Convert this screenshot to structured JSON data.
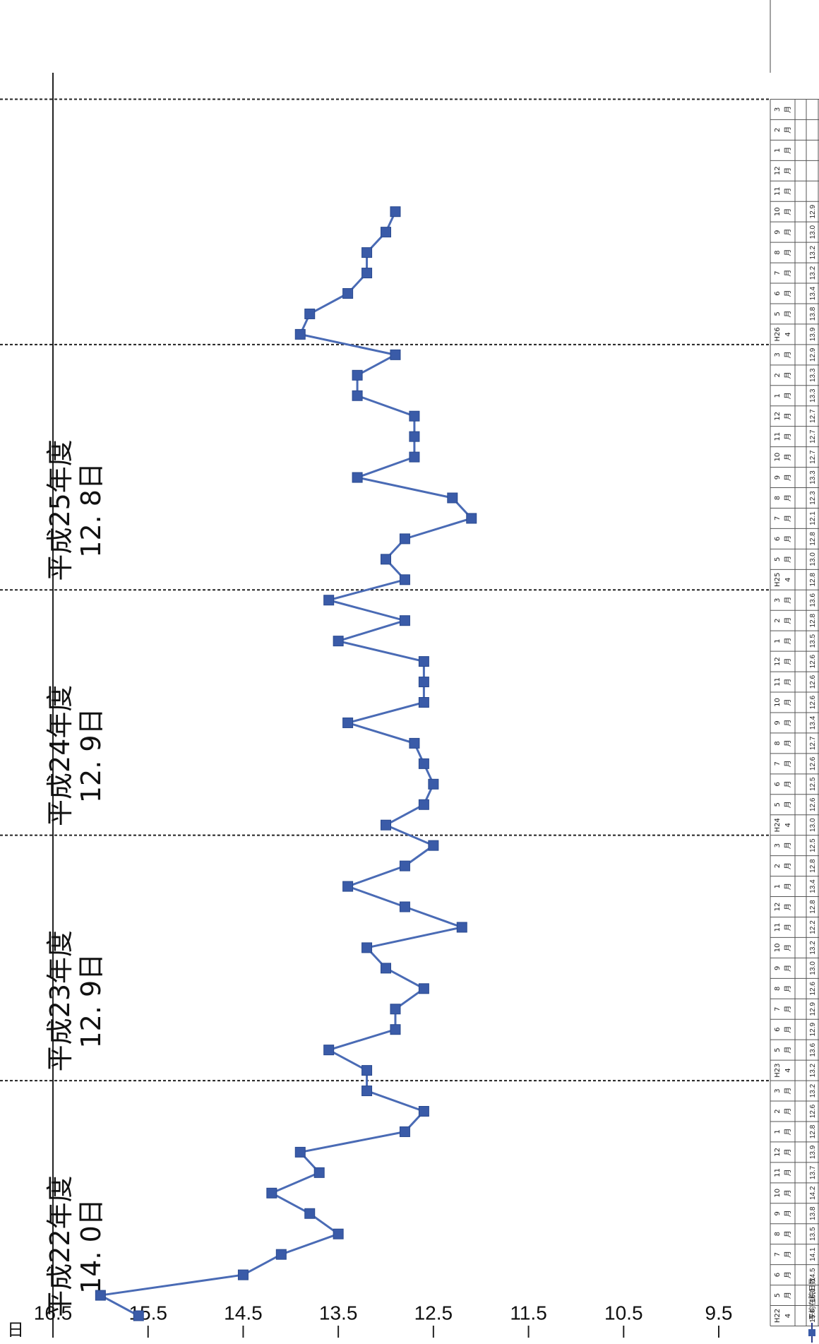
{
  "chart_data": {
    "type": "line",
    "unit_label": "日",
    "ylim": [
      9.5,
      16.5
    ],
    "yticks": [
      "16.5",
      "15.5",
      "14.5",
      "13.5",
      "12.5",
      "11.5",
      "10.5",
      "9.5"
    ],
    "series_name": "平均在院日数",
    "series_color": "#4a6bb5",
    "marker_color": "#3a5ba8",
    "categories": [
      {
        "top": "H22",
        "bottom": "4"
      },
      {
        "top": "5",
        "bottom": "月"
      },
      {
        "top": "6",
        "bottom": "月"
      },
      {
        "top": "7",
        "bottom": "月"
      },
      {
        "top": "8",
        "bottom": "月"
      },
      {
        "top": "9",
        "bottom": "月"
      },
      {
        "top": "10",
        "bottom": "月"
      },
      {
        "top": "11",
        "bottom": "月"
      },
      {
        "top": "12",
        "bottom": "月"
      },
      {
        "top": "1",
        "bottom": "月"
      },
      {
        "top": "2",
        "bottom": "月"
      },
      {
        "top": "3",
        "bottom": "月"
      },
      {
        "top": "H23",
        "bottom": "4"
      },
      {
        "top": "5",
        "bottom": "月"
      },
      {
        "top": "6",
        "bottom": "月"
      },
      {
        "top": "7",
        "bottom": "月"
      },
      {
        "top": "8",
        "bottom": "月"
      },
      {
        "top": "9",
        "bottom": "月"
      },
      {
        "top": "10",
        "bottom": "月"
      },
      {
        "top": "11",
        "bottom": "月"
      },
      {
        "top": "12",
        "bottom": "月"
      },
      {
        "top": "1",
        "bottom": "月"
      },
      {
        "top": "2",
        "bottom": "月"
      },
      {
        "top": "3",
        "bottom": "月"
      },
      {
        "top": "H24",
        "bottom": "4"
      },
      {
        "top": "5",
        "bottom": "月"
      },
      {
        "top": "6",
        "bottom": "月"
      },
      {
        "top": "7",
        "bottom": "月"
      },
      {
        "top": "8",
        "bottom": "月"
      },
      {
        "top": "9",
        "bottom": "月"
      },
      {
        "top": "10",
        "bottom": "月"
      },
      {
        "top": "11",
        "bottom": "月"
      },
      {
        "top": "12",
        "bottom": "月"
      },
      {
        "top": "1",
        "bottom": "月"
      },
      {
        "top": "2",
        "bottom": "月"
      },
      {
        "top": "3",
        "bottom": "月"
      },
      {
        "top": "H25",
        "bottom": "4"
      },
      {
        "top": "5",
        "bottom": "月"
      },
      {
        "top": "6",
        "bottom": "月"
      },
      {
        "top": "7",
        "bottom": "月"
      },
      {
        "top": "8",
        "bottom": "月"
      },
      {
        "top": "9",
        "bottom": "月"
      },
      {
        "top": "10",
        "bottom": "月"
      },
      {
        "top": "11",
        "bottom": "月"
      },
      {
        "top": "12",
        "bottom": "月"
      },
      {
        "top": "1",
        "bottom": "月"
      },
      {
        "top": "2",
        "bottom": "月"
      },
      {
        "top": "3",
        "bottom": "月"
      },
      {
        "top": "H26",
        "bottom": "4"
      },
      {
        "top": "5",
        "bottom": "月"
      },
      {
        "top": "6",
        "bottom": "月"
      },
      {
        "top": "7",
        "bottom": "月"
      },
      {
        "top": "8",
        "bottom": "月"
      },
      {
        "top": "9",
        "bottom": "月"
      },
      {
        "top": "10",
        "bottom": "月"
      },
      {
        "top": "11",
        "bottom": "月"
      },
      {
        "top": "12",
        "bottom": "月"
      },
      {
        "top": "1",
        "bottom": "月"
      },
      {
        "top": "2",
        "bottom": "月"
      },
      {
        "top": "3",
        "bottom": "月"
      }
    ],
    "values": [
      15.6,
      16.0,
      14.5,
      14.1,
      13.5,
      13.8,
      14.2,
      13.7,
      13.9,
      12.8,
      12.6,
      13.2,
      13.2,
      13.6,
      12.9,
      12.9,
      12.6,
      13.0,
      13.2,
      12.2,
      12.8,
      13.4,
      12.8,
      12.5,
      13.0,
      12.6,
      12.5,
      12.6,
      12.7,
      13.4,
      12.6,
      12.6,
      12.6,
      13.5,
      12.8,
      13.6,
      12.8,
      13.0,
      12.8,
      12.1,
      12.3,
      13.3,
      12.7,
      12.7,
      12.7,
      13.3,
      13.3,
      12.9,
      13.9,
      13.8,
      13.4,
      13.2,
      13.2,
      13.0,
      12.9,
      null,
      null,
      null,
      null,
      null
    ],
    "table_values": [
      "15.6",
      "16.0",
      "14.5",
      "14.1",
      "13.5",
      "13.8",
      "14.2",
      "13.7",
      "13.9",
      "12.8",
      "12.6",
      "13.2",
      "13.2",
      "13.6",
      "12.9",
      "12.9",
      "12.6",
      "13.0",
      "13.2",
      "12.2",
      "12.8",
      "13.4",
      "12.8",
      "12.5",
      "13.0",
      "12.6",
      "12.5",
      "12.6",
      "12.7",
      "13.4",
      "12.6",
      "12.6",
      "12.6",
      "13.5",
      "12.8",
      "13.6",
      "12.8",
      "13.0",
      "12.8",
      "12.1",
      "12.3",
      "13.3",
      "12.7",
      "12.7",
      "12.7",
      "13.3",
      "13.3",
      "12.9",
      "13.9",
      "13.8",
      "13.4",
      "13.2",
      "13.2",
      "13.0",
      "12.9",
      "",
      "",
      "",
      "",
      ""
    ],
    "annotations": [
      {
        "line1": "平成22年度",
        "line2": "14. 0日"
      },
      {
        "line1": "平成23年度",
        "line2": "12. 9日"
      },
      {
        "line1": "平成24年度",
        "line2": "12. 9日"
      },
      {
        "line1": "平成25年度",
        "line2": "12. 8日"
      }
    ]
  }
}
